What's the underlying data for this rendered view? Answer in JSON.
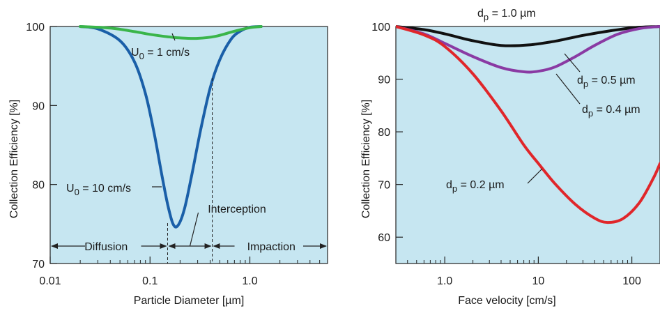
{
  "colors": {
    "plot_bg": "#c6e6f1",
    "blue": "#1a5fa8",
    "green": "#3ab54a",
    "black": "#111111",
    "purple": "#8a3aa3",
    "red": "#e0262a"
  },
  "chart_data": [
    {
      "type": "line",
      "xscale": "log",
      "xlim": [
        0.01,
        6.0
      ],
      "ylim": [
        70,
        100
      ],
      "xlabel": "Particle Diameter [µm]",
      "ylabel": "Collection Efficiency [%]",
      "xticks": [
        {
          "value": 0.01,
          "label": "0.01"
        },
        {
          "value": 0.1,
          "label": "0.1"
        },
        {
          "value": 1.0,
          "label": "1.0"
        }
      ],
      "yticks": [
        {
          "value": 70,
          "label": "70"
        },
        {
          "value": 80,
          "label": "80"
        },
        {
          "value": 90,
          "label": "90"
        },
        {
          "value": 100,
          "label": "100"
        }
      ],
      "series": [
        {
          "label_text": "U",
          "label_sub": "0",
          "label_rest": " = 10 cm/s",
          "color": "blue",
          "x": [
            0.02,
            0.03,
            0.05,
            0.07,
            0.09,
            0.11,
            0.13,
            0.15,
            0.17,
            0.19,
            0.22,
            0.26,
            0.32,
            0.4,
            0.5,
            0.65,
            0.8,
            1.0,
            1.3
          ],
          "y": [
            100,
            99.7,
            98.2,
            95.5,
            91.5,
            86.5,
            81.5,
            77.5,
            75.0,
            74.8,
            76.8,
            81.0,
            86.8,
            92.2,
            95.8,
            98.4,
            99.4,
            99.9,
            100
          ]
        },
        {
          "label_text": "U",
          "label_sub": "0",
          "label_rest": " = 1 cm/s",
          "color": "green",
          "x": [
            0.02,
            0.04,
            0.07,
            0.1,
            0.15,
            0.2,
            0.3,
            0.45,
            0.7,
            1.0,
            1.3
          ],
          "y": [
            100,
            99.8,
            99.35,
            99.0,
            98.7,
            98.55,
            98.5,
            98.75,
            99.4,
            99.85,
            100
          ]
        }
      ],
      "annotations": {
        "diffusion": "Diffusion",
        "interception": "Interception",
        "impaction": "Impaction"
      },
      "boundaries": [
        0.15,
        0.42
      ]
    },
    {
      "type": "line",
      "xscale": "log",
      "xlim": [
        0.3,
        200
      ],
      "ylim": [
        55,
        100
      ],
      "xlabel": "Face velocity [cm/s]",
      "ylabel": "Collection Efficiency [%]",
      "xticks": [
        {
          "value": 1,
          "label": "1.0"
        },
        {
          "value": 10,
          "label": "10"
        },
        {
          "value": 100,
          "label": "100"
        }
      ],
      "yticks": [
        {
          "value": 60,
          "label": "60"
        },
        {
          "value": 70,
          "label": "70"
        },
        {
          "value": 80,
          "label": "80"
        },
        {
          "value": 90,
          "label": "90"
        },
        {
          "value": 100,
          "label": "100"
        }
      ],
      "series": [
        {
          "label_text": "d",
          "label_sub": "p",
          "label_rest": " = 1.0 µm",
          "color": "black",
          "x": [
            0.3,
            0.6,
            1,
            2,
            4,
            8,
            15,
            30,
            60,
            110,
            200
          ],
          "y": [
            100,
            99.4,
            98.6,
            97.3,
            96.4,
            96.5,
            97.2,
            98.3,
            99.2,
            99.8,
            100
          ]
        },
        {
          "label_text": "d",
          "label_sub": "p",
          "label_rest": " = 0.5 µm",
          "color": "purple",
          "x": [
            0.3,
            0.6,
            1,
            2,
            4,
            7,
            10,
            15,
            25,
            40,
            70,
            120,
            200
          ],
          "y": [
            100,
            98.6,
            96.8,
            94.3,
            92.2,
            91.4,
            91.5,
            92.3,
            94.3,
            96.4,
            98.5,
            99.6,
            100
          ]
        },
        {
          "label_text": "d",
          "label_sub": "p",
          "label_rest": " = 0.4 µm",
          "color": "purple",
          "leader_only": true,
          "x": [],
          "y": []
        },
        {
          "label_text": "d",
          "label_sub": "p",
          "label_rest": " = 0.2 µm",
          "color": "red",
          "x": [
            0.3,
            0.6,
            1,
            2,
            4,
            7,
            10,
            15,
            25,
            40,
            55,
            80,
            120,
            170,
            200
          ],
          "y": [
            100,
            98.4,
            96.2,
            91.0,
            84.0,
            77.5,
            74.0,
            70.2,
            66.2,
            63.6,
            62.8,
            63.5,
            66.5,
            71.2,
            74.0
          ]
        }
      ]
    }
  ]
}
